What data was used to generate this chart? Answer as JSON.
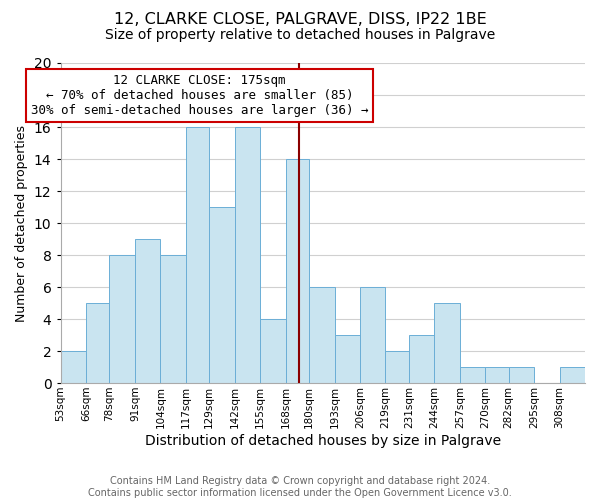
{
  "title": "12, CLARKE CLOSE, PALGRAVE, DISS, IP22 1BE",
  "subtitle": "Size of property relative to detached houses in Palgrave",
  "xlabel": "Distribution of detached houses by size in Palgrave",
  "ylabel": "Number of detached properties",
  "bin_labels": [
    "53sqm",
    "66sqm",
    "78sqm",
    "91sqm",
    "104sqm",
    "117sqm",
    "129sqm",
    "142sqm",
    "155sqm",
    "168sqm",
    "180sqm",
    "193sqm",
    "206sqm",
    "219sqm",
    "231sqm",
    "244sqm",
    "257sqm",
    "270sqm",
    "282sqm",
    "295sqm",
    "308sqm"
  ],
  "bin_edges": [
    53,
    66,
    78,
    91,
    104,
    117,
    129,
    142,
    155,
    168,
    180,
    193,
    206,
    219,
    231,
    244,
    257,
    270,
    282,
    295,
    308
  ],
  "counts": [
    2,
    5,
    8,
    9,
    8,
    16,
    11,
    16,
    4,
    14,
    6,
    3,
    6,
    2,
    3,
    5,
    1,
    1,
    1,
    0,
    1
  ],
  "bar_color": "#c9e4f0",
  "bar_edge_color": "#6baed6",
  "grid_color": "#d0d0d0",
  "vline_x": 175,
  "vline_color": "#8b0000",
  "annotation_title": "12 CLARKE CLOSE: 175sqm",
  "annotation_line1": "← 70% of detached houses are smaller (85)",
  "annotation_line2": "30% of semi-detached houses are larger (36) →",
  "annotation_box_color": "white",
  "annotation_box_edge": "#cc0000",
  "footer_line1": "Contains HM Land Registry data © Crown copyright and database right 2024.",
  "footer_line2": "Contains public sector information licensed under the Open Government Licence v3.0.",
  "ylim": [
    0,
    20
  ],
  "xlim_left": 53,
  "xlim_right": 321,
  "title_fontsize": 11.5,
  "subtitle_fontsize": 10,
  "xlabel_fontsize": 10,
  "ylabel_fontsize": 9,
  "tick_fontsize": 7.5,
  "footer_fontsize": 7,
  "annot_fontsize": 9
}
